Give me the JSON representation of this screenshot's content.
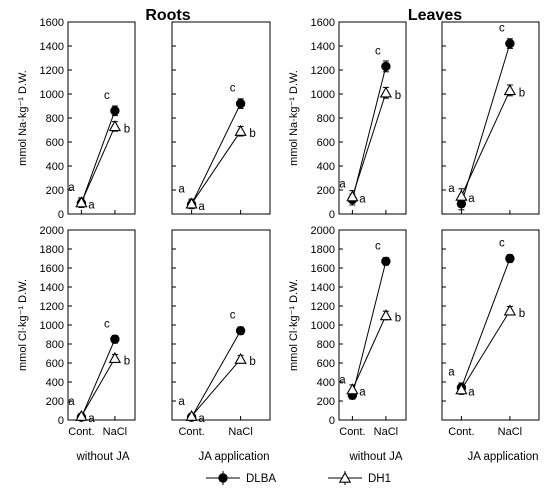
{
  "titles": [
    "Roots",
    "Leaves"
  ],
  "conditions": [
    "without  JA",
    "JA  application",
    "without  JA",
    "JA  application"
  ],
  "legend": [
    {
      "label": "DLBA",
      "marker": "circle-filled"
    },
    {
      "label": "DH1",
      "marker": "triangle-open"
    }
  ],
  "colors": {
    "ink": "#000000",
    "background": "#ffffff"
  },
  "chart_data": [
    {
      "type": "line",
      "panel": "roots-na-without-ja",
      "organ": "Roots",
      "condition": "without  JA",
      "ylabel": "mmol  Na·kg⁻¹ D.W.",
      "categories": [
        "Cont.",
        "NaCl"
      ],
      "ylim": [
        0,
        1600
      ],
      "yticks": [
        0,
        200,
        400,
        600,
        800,
        1000,
        1200,
        1400,
        1600
      ],
      "series": [
        {
          "name": "DLBA",
          "values": [
            90,
            860
          ],
          "errors": [
            35,
            40
          ],
          "letters": [
            "a",
            "c"
          ]
        },
        {
          "name": "DH1",
          "values": [
            95,
            730
          ],
          "errors": [
            40,
            40
          ],
          "letters": [
            "a",
            "b"
          ]
        }
      ]
    },
    {
      "type": "line",
      "panel": "roots-na-ja-application",
      "organ": "Roots",
      "condition": "JA  application",
      "ylabel": "",
      "categories": [
        "Cont.",
        "NaCl"
      ],
      "ylim": [
        0,
        1600
      ],
      "yticks": [
        0,
        200,
        400,
        600,
        800,
        1000,
        1200,
        1400,
        1600
      ],
      "series": [
        {
          "name": "DLBA",
          "values": [
            80,
            920
          ],
          "errors": [
            35,
            40
          ],
          "letters": [
            "a",
            "c"
          ]
        },
        {
          "name": "DH1",
          "values": [
            85,
            690
          ],
          "errors": [
            40,
            40
          ],
          "letters": [
            "a",
            "b"
          ]
        }
      ]
    },
    {
      "type": "line",
      "panel": "leaves-na-without-ja",
      "organ": "Leaves",
      "condition": "without  JA",
      "ylabel": "mmol  Na·kg⁻¹ D.W.",
      "categories": [
        "Cont.",
        "NaCl"
      ],
      "ylim": [
        0,
        1600
      ],
      "yticks": [
        0,
        200,
        400,
        600,
        800,
        1000,
        1200,
        1400,
        1600
      ],
      "series": [
        {
          "name": "DLBA",
          "values": [
            120,
            1230
          ],
          "errors": [
            45,
            45
          ],
          "letters": [
            "a",
            "c"
          ]
        },
        {
          "name": "DH1",
          "values": [
            145,
            1010
          ],
          "errors": [
            50,
            45
          ],
          "letters": [
            "a",
            "b"
          ]
        }
      ]
    },
    {
      "type": "line",
      "panel": "leaves-na-ja-application",
      "organ": "Leaves",
      "condition": "JA  application",
      "ylabel": "",
      "categories": [
        "Cont.",
        "NaCl"
      ],
      "ylim": [
        0,
        1600
      ],
      "yticks": [
        0,
        200,
        400,
        600,
        800,
        1000,
        1200,
        1400,
        1600
      ],
      "series": [
        {
          "name": "DLBA",
          "values": [
            85,
            1420
          ],
          "errors": [
            50,
            40
          ],
          "letters": [
            "a",
            "c"
          ]
        },
        {
          "name": "DH1",
          "values": [
            150,
            1030
          ],
          "errors": [
            60,
            45
          ],
          "letters": [
            "a",
            "b"
          ]
        }
      ]
    },
    {
      "type": "line",
      "panel": "roots-cl-without-ja",
      "organ": "Roots",
      "condition": "without  JA",
      "ylabel": "mmol  Cl·kg⁻¹ D.W.",
      "categories": [
        "Cont.",
        "NaCl"
      ],
      "ylim": [
        0,
        2000
      ],
      "yticks": [
        0,
        200,
        400,
        600,
        800,
        1000,
        1200,
        1400,
        1600,
        1800,
        2000
      ],
      "series": [
        {
          "name": "DLBA",
          "values": [
            30,
            850
          ],
          "errors": [
            30,
            40
          ],
          "letters": [
            "a",
            "c"
          ]
        },
        {
          "name": "DH1",
          "values": [
            40,
            650
          ],
          "errors": [
            30,
            40
          ],
          "letters": [
            "a",
            "b"
          ]
        }
      ]
    },
    {
      "type": "line",
      "panel": "roots-cl-ja-application",
      "organ": "Roots",
      "condition": "JA  application",
      "ylabel": "",
      "categories": [
        "Cont.",
        "NaCl"
      ],
      "ylim": [
        0,
        2000
      ],
      "yticks": [
        0,
        200,
        400,
        600,
        800,
        1000,
        1200,
        1400,
        1600,
        1800,
        2000
      ],
      "series": [
        {
          "name": "DLBA",
          "values": [
            30,
            940
          ],
          "errors": [
            30,
            40
          ],
          "letters": [
            "a",
            "c"
          ]
        },
        {
          "name": "DH1",
          "values": [
            40,
            640
          ],
          "errors": [
            30,
            40
          ],
          "letters": [
            "a",
            "b"
          ]
        }
      ]
    },
    {
      "type": "line",
      "panel": "leaves-cl-without-ja",
      "organ": "Leaves",
      "condition": "without  JA",
      "ylabel": "mmol  Cl·kg⁻¹ D.W.",
      "categories": [
        "Cont.",
        "NaCl"
      ],
      "ylim": [
        0,
        2000
      ],
      "yticks": [
        0,
        200,
        400,
        600,
        800,
        1000,
        1200,
        1400,
        1600,
        1800,
        2000
      ],
      "series": [
        {
          "name": "DLBA",
          "values": [
            260,
            1670
          ],
          "errors": [
            40,
            40
          ],
          "letters": [
            "a",
            "c"
          ]
        },
        {
          "name": "DH1",
          "values": [
            320,
            1100
          ],
          "errors": [
            50,
            45
          ],
          "letters": [
            "a",
            "b"
          ]
        }
      ]
    },
    {
      "type": "line",
      "panel": "leaves-cl-ja-application",
      "organ": "Leaves",
      "condition": "JA  application",
      "ylabel": "",
      "categories": [
        "Cont.",
        "NaCl"
      ],
      "ylim": [
        0,
        2000
      ],
      "yticks": [
        0,
        200,
        400,
        600,
        800,
        1000,
        1200,
        1400,
        1600,
        1800,
        2000
      ],
      "series": [
        {
          "name": "DLBA",
          "values": [
            340,
            1700
          ],
          "errors": [
            50,
            40
          ],
          "letters": [
            "a",
            "c"
          ]
        },
        {
          "name": "DH1",
          "values": [
            320,
            1150
          ],
          "errors": [
            50,
            45
          ],
          "letters": [
            "a",
            "b"
          ]
        }
      ]
    }
  ]
}
